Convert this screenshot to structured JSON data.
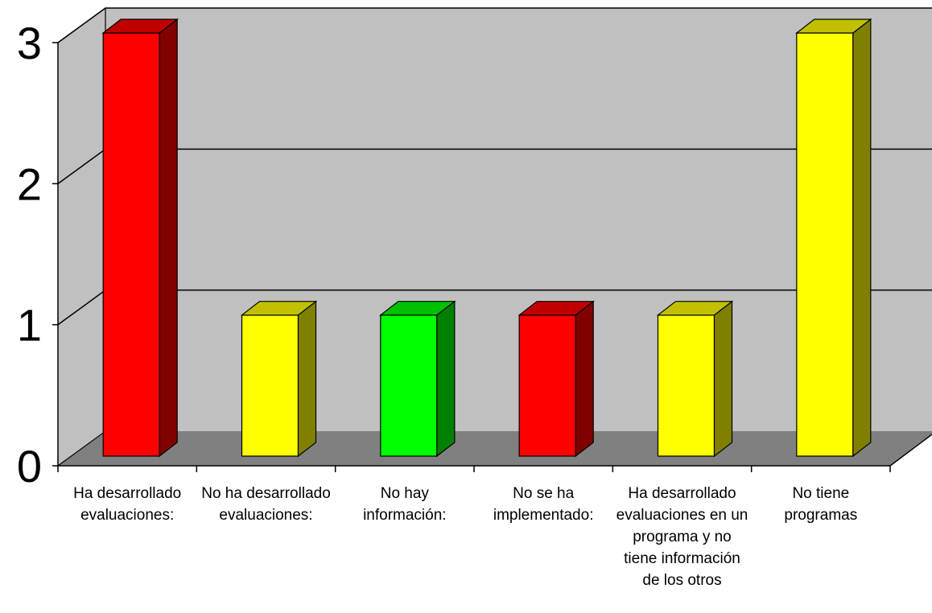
{
  "chart_data": {
    "type": "bar",
    "categories": [
      [
        "Ha desarrollado",
        "evaluaciones:"
      ],
      [
        "No ha desarrollado",
        "evaluaciones:"
      ],
      [
        "No hay",
        "información:"
      ],
      [
        "No se ha",
        "implementado:"
      ],
      [
        "Ha desarrollado",
        "evaluaciones en un",
        "programa y no",
        "tiene información",
        "de los otros"
      ],
      [
        "No tiene",
        "programas"
      ]
    ],
    "values": [
      3,
      1,
      1,
      1,
      1,
      3
    ],
    "colors": [
      "#ff0000",
      "#ffff00",
      "#00ff00",
      "#ff0000",
      "#ffff00",
      "#ffff00"
    ],
    "side_colors": [
      "#800000",
      "#808000",
      "#008000",
      "#800000",
      "#808000",
      "#808000"
    ],
    "top_colors": [
      "#c00000",
      "#c0c000",
      "#00c000",
      "#c00000",
      "#c0c000",
      "#c0c000"
    ],
    "ylim": [
      0,
      3
    ],
    "yticks": [
      "0",
      "1",
      "2",
      "3"
    ],
    "grid": true,
    "wall_color": "#c0c0c0",
    "floor_color": "#808080",
    "title": "",
    "xlabel": "",
    "ylabel": ""
  }
}
